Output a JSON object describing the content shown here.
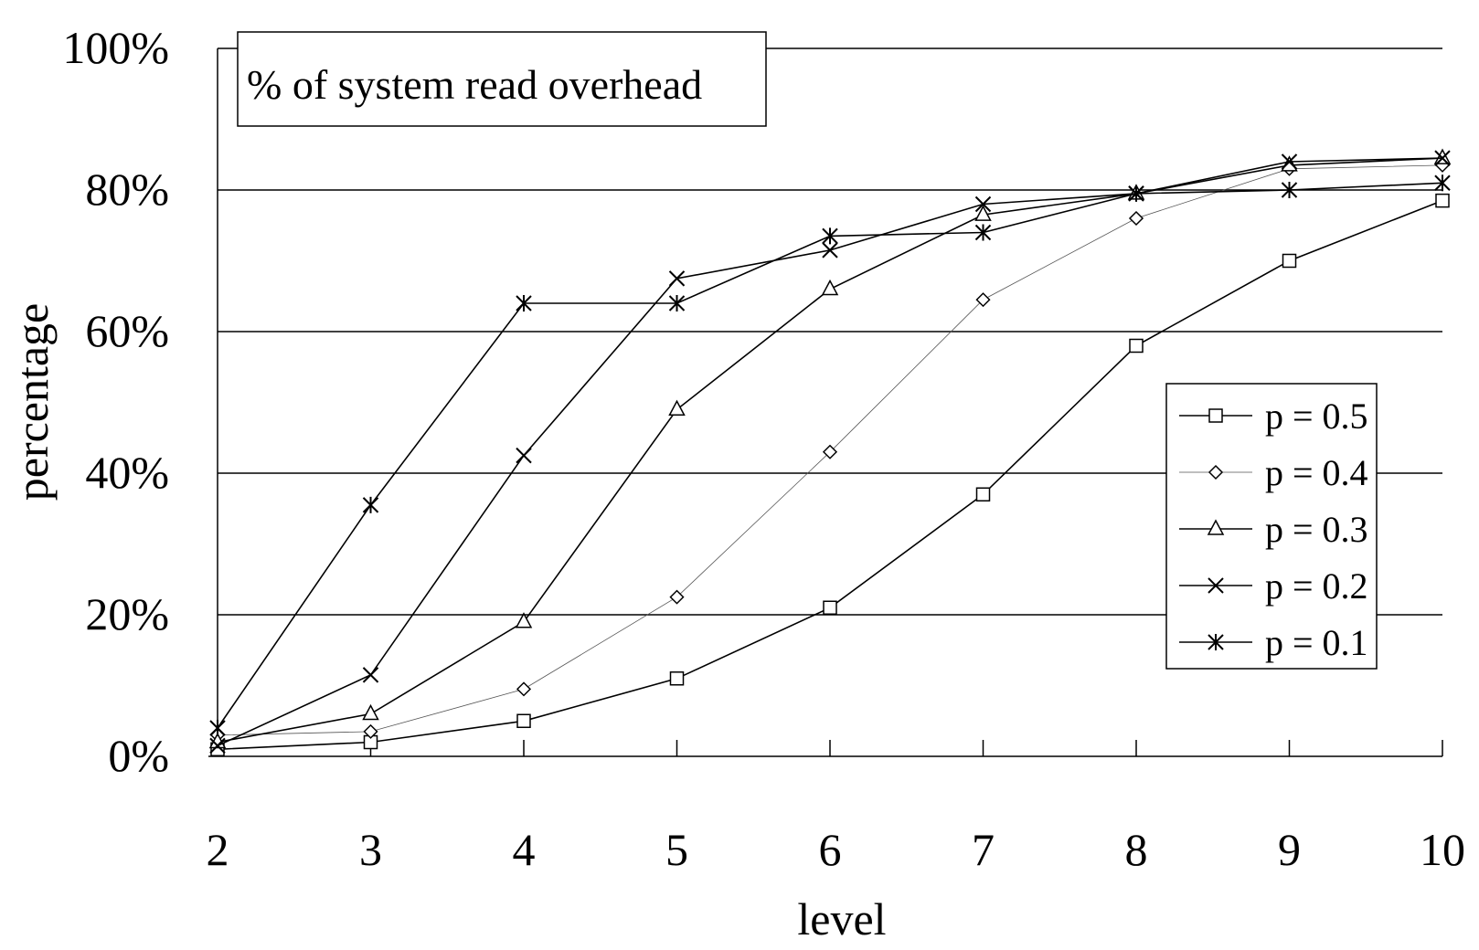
{
  "chart_data": {
    "type": "line",
    "title": "% of system read overhead",
    "xlabel": "level",
    "ylabel": "percentage",
    "x": [
      2,
      3,
      4,
      5,
      6,
      7,
      8,
      9,
      10
    ],
    "x_tick_labels": [
      "2",
      "3",
      "4",
      "5",
      "6",
      "7",
      "8",
      "9",
      "10"
    ],
    "y_tick_labels": [
      "0%",
      "20%",
      "40%",
      "60%",
      "80%",
      "100%"
    ],
    "ylim": [
      0,
      100
    ],
    "y_ticks": [
      0,
      20,
      40,
      60,
      80,
      100
    ],
    "grid": "horizontal",
    "legend_position": "right",
    "series": [
      {
        "name": "p = 0.5",
        "marker": "square",
        "line": "solid",
        "values": [
          1,
          2,
          5,
          11,
          21,
          37,
          58,
          70,
          78.5
        ]
      },
      {
        "name": "p = 0.4",
        "marker": "diamond",
        "line": "thin",
        "values": [
          3,
          3.5,
          9.5,
          22.5,
          43,
          64.5,
          76,
          83,
          83.5
        ]
      },
      {
        "name": "p = 0.3",
        "marker": "triangle",
        "line": "solid",
        "values": [
          2,
          6,
          19,
          49,
          66,
          76.5,
          79.5,
          83.5,
          84.5
        ]
      },
      {
        "name": "p = 0.2",
        "marker": "x",
        "line": "solid",
        "values": [
          1.5,
          11.5,
          42.5,
          67.5,
          71.5,
          78,
          79.5,
          84,
          84.5
        ]
      },
      {
        "name": "p = 0.1",
        "marker": "asterisk",
        "line": "solid",
        "values": [
          4,
          35.5,
          64,
          64,
          73.5,
          74,
          79.5,
          80,
          81
        ]
      }
    ]
  }
}
